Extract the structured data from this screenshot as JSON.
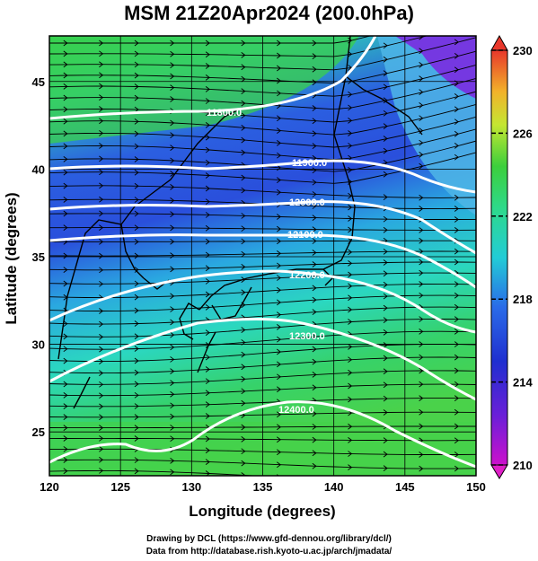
{
  "title": "MSM 21Z20Apr2024 (200.0hPa)",
  "xlabel": "Longitude (degrees)",
  "ylabel": "Latitude  (degrees)",
  "credit_line1": "Drawing by DCL (https://www.gfd-dennou.org/library/dcl/)",
  "credit_line2": "Data from http://database.rish.kyoto-u.ac.jp/arch/jmadata/",
  "map": {
    "lon_range": [
      120,
      150
    ],
    "lat_range": [
      22.5,
      47.6
    ],
    "x_ticks": [
      "120",
      "125",
      "130",
      "135",
      "140",
      "145",
      "150"
    ],
    "y_ticks": [
      "25",
      "30",
      "35",
      "40",
      "45"
    ],
    "contour_labels": [
      "11800.0",
      "11900.0",
      "12000.0",
      "12100.0",
      "12200.0",
      "12300.0",
      "12400.0"
    ],
    "field_colors": {
      "green": "#3ed13e",
      "cyan": "#2fd9c0",
      "blue": "#2a52e0",
      "violet": "#8a2be2"
    }
  },
  "colorbar": {
    "min": 210,
    "max": 230,
    "tick_labels": [
      "230",
      "226",
      "222",
      "218",
      "214",
      "210"
    ],
    "top_color": "#e8372b",
    "bottom_color": "#e020c8"
  }
}
